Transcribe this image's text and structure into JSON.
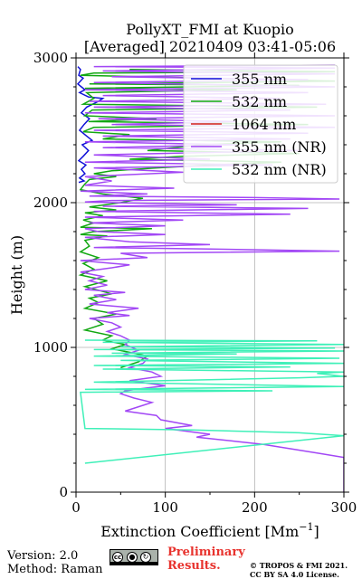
{
  "chart_data": {
    "type": "line",
    "title": "PollyXT_FMI at Kuopio",
    "subtitle": "[Averaged] 20210409 03:41-05:06",
    "xlabel": "Extinction Coefficient [Mm",
    "xlabel_sup": "−1",
    "xlabel_close": "]",
    "ylabel": "Height (m)",
    "xlim": [
      0,
      300
    ],
    "ylim": [
      0,
      3000
    ],
    "x_ticks": [
      0,
      100,
      200,
      300
    ],
    "y_ticks": [
      0,
      1000,
      2000,
      3000
    ],
    "x_minor_ticks": [
      50,
      150,
      250
    ],
    "y_minor_ticks": [
      200,
      400,
      600,
      800,
      1200,
      1400,
      1600,
      1800,
      2200,
      2400,
      2600,
      2800
    ],
    "grid": true,
    "legend_position": "top-right",
    "series": [
      {
        "name": "355 nm",
        "color": "#1010d8",
        "points": [
          [
            2,
            2940
          ],
          [
            5,
            2920
          ],
          [
            3,
            2880
          ],
          [
            8,
            2860
          ],
          [
            2,
            2820
          ],
          [
            6,
            2800
          ],
          [
            10,
            2780
          ],
          [
            4,
            2760
          ],
          [
            14,
            2730
          ],
          [
            30,
            2720
          ],
          [
            25,
            2700
          ],
          [
            12,
            2660
          ],
          [
            6,
            2620
          ],
          [
            15,
            2580
          ],
          [
            9,
            2540
          ],
          [
            4,
            2500
          ],
          [
            12,
            2460
          ],
          [
            18,
            2430
          ],
          [
            7,
            2400
          ],
          [
            14,
            2360
          ],
          [
            8,
            2320
          ],
          [
            3,
            2290
          ],
          [
            11,
            2260
          ],
          [
            6,
            2230
          ],
          [
            10,
            2200
          ],
          [
            4,
            2170
          ],
          [
            9,
            2150
          ],
          [
            3,
            2140
          ]
        ]
      },
      {
        "name": "532 nm",
        "color": "#12a812",
        "points": [
          [
            60,
            2920
          ],
          [
            290,
            2905
          ],
          [
            20,
            2895
          ],
          [
            5,
            2880
          ],
          [
            290,
            2840
          ],
          [
            15,
            2820
          ],
          [
            250,
            2810
          ],
          [
            10,
            2790
          ],
          [
            180,
            2780
          ],
          [
            12,
            2760
          ],
          [
            20,
            2720
          ],
          [
            8,
            2680
          ],
          [
            270,
            2660
          ],
          [
            18,
            2640
          ],
          [
            10,
            2600
          ],
          [
            90,
            2580
          ],
          [
            14,
            2560
          ],
          [
            260,
            2540
          ],
          [
            20,
            2520
          ],
          [
            8,
            2490
          ],
          [
            60,
            2470
          ],
          [
            30,
            2440
          ],
          [
            230,
            2420
          ],
          [
            140,
            2400
          ],
          [
            80,
            2360
          ],
          [
            250,
            2340
          ],
          [
            120,
            2320
          ],
          [
            60,
            2300
          ],
          [
            230,
            2280
          ],
          [
            150,
            2260
          ],
          [
            90,
            2240
          ],
          [
            40,
            2220
          ],
          [
            20,
            2200
          ],
          [
            45,
            2180
          ],
          [
            15,
            2160
          ],
          [
            10,
            2130
          ],
          [
            5,
            2090
          ],
          [
            30,
            2060
          ],
          [
            75,
            2030
          ],
          [
            50,
            2000
          ],
          [
            15,
            1970
          ],
          [
            45,
            1950
          ],
          [
            10,
            1930
          ],
          [
            30,
            1910
          ],
          [
            8,
            1880
          ],
          [
            20,
            1860
          ],
          [
            5,
            1830
          ],
          [
            85,
            1820
          ],
          [
            20,
            1800
          ],
          [
            5,
            1780
          ],
          [
            35,
            1770
          ],
          [
            10,
            1740
          ],
          [
            15,
            1700
          ],
          [
            5,
            1660
          ],
          [
            25,
            1620
          ],
          [
            8,
            1580
          ],
          [
            20,
            1540
          ],
          [
            5,
            1500
          ],
          [
            35,
            1460
          ],
          [
            10,
            1420
          ],
          [
            40,
            1370
          ],
          [
            15,
            1340
          ],
          [
            25,
            1310
          ],
          [
            10,
            1270
          ],
          [
            45,
            1230
          ],
          [
            20,
            1200
          ],
          [
            30,
            1160
          ],
          [
            10,
            1120
          ],
          [
            40,
            1080
          ],
          [
            30,
            1050
          ],
          [
            55,
            1020
          ],
          [
            40,
            990
          ],
          [
            65,
            960
          ],
          [
            80,
            940
          ],
          [
            70,
            900
          ],
          [
            50,
            860
          ]
        ]
      },
      {
        "name": "1064 nm",
        "color": "#d32020",
        "points": []
      },
      {
        "name": "355 nm (NR)",
        "color": "#a247f5",
        "points": [
          [
            290,
            2950
          ],
          [
            20,
            2940
          ],
          [
            290,
            2930
          ],
          [
            30,
            2910
          ],
          [
            290,
            2890
          ],
          [
            40,
            2870
          ],
          [
            260,
            2850
          ],
          [
            20,
            2830
          ],
          [
            290,
            2800
          ],
          [
            10,
            2780
          ],
          [
            260,
            2760
          ],
          [
            30,
            2740
          ],
          [
            230,
            2720
          ],
          [
            15,
            2700
          ],
          [
            280,
            2680
          ],
          [
            20,
            2660
          ],
          [
            240,
            2640
          ],
          [
            10,
            2620
          ],
          [
            290,
            2600
          ],
          [
            25,
            2580
          ],
          [
            180,
            2560
          ],
          [
            40,
            2540
          ],
          [
            290,
            2520
          ],
          [
            20,
            2500
          ],
          [
            260,
            2480
          ],
          [
            30,
            2460
          ],
          [
            240,
            2440
          ],
          [
            10,
            2420
          ],
          [
            180,
            2400
          ],
          [
            30,
            2380
          ],
          [
            250,
            2360
          ],
          [
            20,
            2330
          ],
          [
            150,
            2300
          ],
          [
            10,
            2280
          ],
          [
            220,
            2260
          ],
          [
            20,
            2240
          ],
          [
            120,
            2210
          ],
          [
            10,
            2180
          ],
          [
            40,
            2150
          ],
          [
            10,
            2120
          ],
          [
            110,
            2100
          ],
          [
            5,
            2080
          ],
          [
            80,
            2060
          ],
          [
            15,
            2045
          ],
          [
            200,
            2035
          ],
          [
            295,
            2025
          ],
          [
            40,
            2015
          ],
          [
            10,
            2005
          ],
          [
            80,
            1995
          ],
          [
            180,
            1985
          ],
          [
            30,
            1975
          ],
          [
            260,
            1960
          ],
          [
            20,
            1940
          ],
          [
            240,
            1920
          ],
          [
            10,
            1900
          ],
          [
            120,
            1880
          ],
          [
            15,
            1860
          ],
          [
            100,
            1840
          ],
          [
            10,
            1820
          ],
          [
            25,
            1800
          ],
          [
            100,
            1780
          ],
          [
            10,
            1760
          ],
          [
            60,
            1730
          ],
          [
            150,
            1710
          ],
          [
            20,
            1690
          ],
          [
            150,
            1680
          ],
          [
            295,
            1665
          ],
          [
            50,
            1650
          ],
          [
            80,
            1620
          ],
          [
            5,
            1600
          ],
          [
            60,
            1570
          ],
          [
            40,
            1550
          ],
          [
            5,
            1520
          ],
          [
            30,
            1490
          ],
          [
            15,
            1460
          ],
          [
            35,
            1430
          ],
          [
            10,
            1400
          ],
          [
            55,
            1380
          ],
          [
            20,
            1360
          ],
          [
            45,
            1330
          ],
          [
            15,
            1300
          ],
          [
            70,
            1270
          ],
          [
            35,
            1240
          ],
          [
            60,
            1220
          ],
          [
            15,
            1200
          ],
          [
            40,
            1170
          ],
          [
            50,
            1140
          ],
          [
            35,
            1110
          ],
          [
            50,
            1080
          ],
          [
            60,
            1050
          ],
          [
            55,
            1020
          ],
          [
            70,
            980
          ],
          [
            55,
            950
          ],
          [
            80,
            920
          ],
          [
            75,
            890
          ],
          [
            60,
            860
          ],
          [
            85,
            830
          ],
          [
            95,
            800
          ],
          [
            60,
            770
          ],
          [
            100,
            735
          ],
          [
            80,
            720
          ],
          [
            55,
            700
          ],
          [
            50,
            680
          ],
          [
            65,
            650
          ],
          [
            85,
            620
          ],
          [
            70,
            590
          ],
          [
            55,
            560
          ],
          [
            90,
            530
          ],
          [
            95,
            500
          ],
          [
            130,
            460
          ],
          [
            100,
            440
          ],
          [
            150,
            400
          ],
          [
            135,
            380
          ],
          [
            180,
            350
          ],
          [
            210,
            330
          ],
          [
            240,
            300
          ],
          [
            270,
            270
          ],
          [
            300,
            240
          ],
          [
            300,
            0
          ]
        ]
      },
      {
        "name": "532 nm (NR)",
        "color": "#3ff0b8",
        "points": [
          [
            10,
            1050
          ],
          [
            270,
            1045
          ],
          [
            30,
            1035
          ],
          [
            300,
            1020
          ],
          [
            50,
            1005
          ],
          [
            290,
            995
          ],
          [
            20,
            985
          ],
          [
            300,
            975
          ],
          [
            40,
            960
          ],
          [
            180,
            955
          ],
          [
            20,
            940
          ],
          [
            295,
            925
          ],
          [
            50,
            910
          ],
          [
            300,
            890
          ],
          [
            20,
            875
          ],
          [
            240,
            865
          ],
          [
            30,
            850
          ],
          [
            300,
            830
          ],
          [
            270,
            820
          ],
          [
            300,
            800
          ],
          [
            250,
            790
          ],
          [
            20,
            760
          ],
          [
            300,
            730
          ],
          [
            10,
            710
          ],
          [
            220,
            700
          ],
          [
            5,
            690
          ],
          [
            10,
            440
          ],
          [
            130,
            430
          ],
          [
            250,
            410
          ],
          [
            300,
            390
          ],
          [
            10,
            200
          ]
        ]
      }
    ]
  },
  "footer": {
    "version": "Version: 2.0",
    "method": "Method: Raman",
    "license_badge": "cc-by-sa-badge",
    "preliminary_line1": "Preliminary",
    "preliminary_line2": "Results.",
    "copyright_line1": "© TROPOS & FMI 2021.",
    "copyright_line2": "CC BY SA 4.0 License."
  }
}
